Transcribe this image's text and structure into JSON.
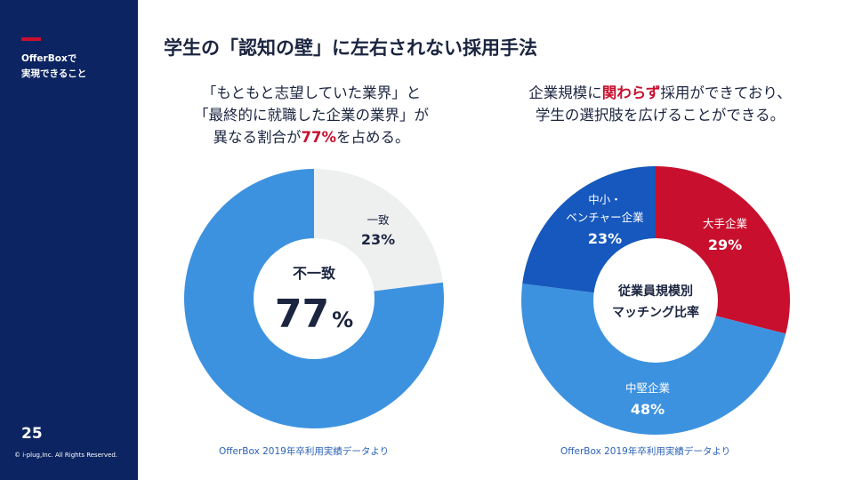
{
  "sidebar": {
    "label_line1": "OfferBoxで",
    "label_line2": "実現できること",
    "page_number": "25",
    "copyright": "© i-plug,Inc. All Rights Reserved.",
    "accent_color": "#c8102e",
    "background_color": "#0c2461"
  },
  "slide": {
    "title": "学生の「認知の壁」に左右されない採用手法"
  },
  "left_panel": {
    "desc_line1": "「もともと志望していた業界」と",
    "desc_line2": "「最終的に就職した企業の業界」が",
    "desc_line3_pre": "異なる割合が",
    "desc_line3_highlight": "77%",
    "desc_line3_post": "を占める。",
    "source": "OfferBox 2019年卒利用実績データより"
  },
  "right_panel": {
    "desc_line1_pre": "企業規模に",
    "desc_line1_highlight": "関わらず",
    "desc_line1_post": "採用ができており、",
    "desc_line2": "学生の選択肢を広げることができる。",
    "source": "OfferBox 2019年卒利用実績データより"
  },
  "chart_data": [
    {
      "type": "pie",
      "center_label": "不一致",
      "center_value": "77",
      "center_unit": "%",
      "slices": [
        {
          "label": "不一致",
          "value": 77,
          "color": "#3d92e0"
        },
        {
          "label": "一致",
          "display": "23%",
          "value": 23,
          "color": "#eeefef"
        }
      ]
    },
    {
      "type": "pie",
      "center_label_line1": "従業員規模別",
      "center_label_line2": "マッチング比率",
      "slices": [
        {
          "label": "大手企業",
          "display": "29%",
          "value": 29,
          "color": "#c8102e"
        },
        {
          "label": "中堅企業",
          "display": "48%",
          "value": 48,
          "color": "#3d92e0"
        },
        {
          "label_line1": "中小・",
          "label_line2": "ベンチャー企業",
          "display": "23%",
          "value": 23,
          "color": "#1658bd"
        }
      ]
    }
  ]
}
